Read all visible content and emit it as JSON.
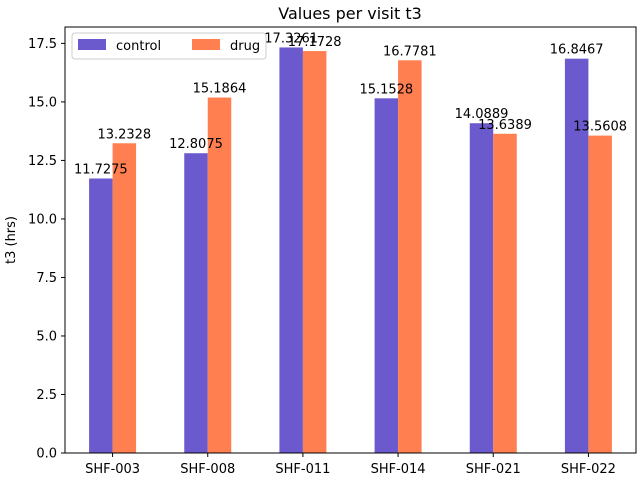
{
  "chart_data": {
    "type": "bar",
    "title": "Values per visit t3",
    "xlabel": "",
    "ylabel": "t3 (hrs)",
    "ylim": [
      0,
      18.2
    ],
    "yticks": [
      "0.0",
      "2.5",
      "5.0",
      "7.5",
      "10.0",
      "12.5",
      "15.0",
      "17.5"
    ],
    "ytick_values": [
      0,
      2.5,
      5,
      7.5,
      10,
      12.5,
      15,
      17.5
    ],
    "categories": [
      "SHF-003",
      "SHF-008",
      "SHF-011",
      "SHF-014",
      "SHF-021",
      "SHF-022"
    ],
    "series": [
      {
        "name": "control",
        "color": "#6a5acd",
        "values": [
          11.7275,
          12.8075,
          17.3261,
          15.1528,
          14.0889,
          16.8467
        ],
        "labels": [
          "11.7275",
          "12.8075",
          "17.3261",
          "15.1528",
          "14.0889",
          "16.8467"
        ]
      },
      {
        "name": "drug",
        "color": "#ff7f50",
        "values": [
          13.2328,
          15.1864,
          17.1728,
          16.7781,
          13.6389,
          13.5608
        ],
        "labels": [
          "13.2328",
          "15.1864",
          "17.1728",
          "16.7781",
          "13.6389",
          "13.5608"
        ]
      }
    ],
    "grid": false,
    "legend_position": "top-left"
  }
}
